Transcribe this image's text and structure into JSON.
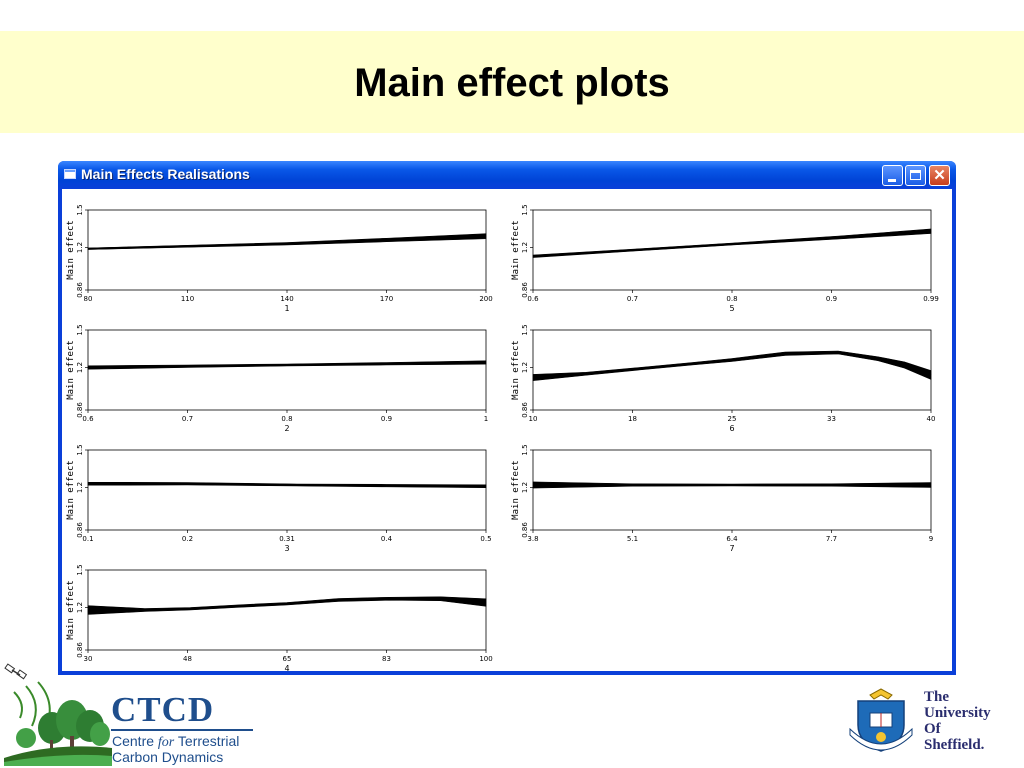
{
  "slide": {
    "title": "Main effect plots",
    "title_band_color": "#ffffcc"
  },
  "window": {
    "title": "Main Effects Realisations",
    "minimize_icon": "minimize-icon",
    "maximize_icon": "maximize-icon",
    "close_icon": "close-icon"
  },
  "chart_data": [
    {
      "type": "line",
      "index_label": "1",
      "ylabel": "Main effect",
      "yticks": [
        "0.86",
        "1.2",
        "1.5"
      ],
      "ylim": [
        0.86,
        1.5
      ],
      "xticks": [
        "80",
        "110",
        "140",
        "170",
        "200"
      ],
      "xlim": [
        80,
        200
      ],
      "x": [
        80,
        110,
        140,
        170,
        200
      ],
      "y": [
        1.19,
        1.21,
        1.23,
        1.26,
        1.29
      ],
      "band": [
        0.006,
        0.008,
        0.01,
        0.014,
        0.02
      ]
    },
    {
      "type": "line",
      "index_label": "5",
      "ylabel": "Main effect",
      "yticks": [
        "0.86",
        "1.2",
        "1.5"
      ],
      "ylim": [
        0.86,
        1.5
      ],
      "xticks": [
        "0.6",
        "0.7",
        "0.8",
        "0.9",
        "0.99"
      ],
      "xlim": [
        0.6,
        0.99
      ],
      "x": [
        0.6,
        0.7,
        0.8,
        0.9,
        0.99
      ],
      "y": [
        1.13,
        1.18,
        1.23,
        1.28,
        1.33
      ],
      "band": [
        0.01,
        0.008,
        0.008,
        0.012,
        0.018
      ]
    },
    {
      "type": "line",
      "index_label": "2",
      "ylabel": "Main effect",
      "yticks": [
        "0.86",
        "1.2",
        "1.5"
      ],
      "ylim": [
        0.86,
        1.5
      ],
      "xticks": [
        "0.6",
        "0.7",
        "0.8",
        "0.9",
        "1"
      ],
      "xlim": [
        0.6,
        1.0
      ],
      "x": [
        0.6,
        0.7,
        0.8,
        0.9,
        1.0
      ],
      "y": [
        1.2,
        1.21,
        1.22,
        1.23,
        1.24
      ],
      "band": [
        0.014,
        0.01,
        0.008,
        0.01,
        0.014
      ]
    },
    {
      "type": "line",
      "index_label": "6",
      "ylabel": "Main effect",
      "yticks": [
        "0.86",
        "1.2",
        "1.5"
      ],
      "ylim": [
        0.86,
        1.5
      ],
      "xticks": [
        "10",
        "18",
        "25",
        "33",
        "40"
      ],
      "xlim": [
        10,
        40
      ],
      "x": [
        10,
        14,
        18,
        22,
        25,
        29,
        33,
        36,
        38,
        40
      ],
      "y": [
        1.12,
        1.15,
        1.19,
        1.23,
        1.26,
        1.31,
        1.32,
        1.27,
        1.22,
        1.14
      ],
      "band": [
        0.025,
        0.012,
        0.01,
        0.01,
        0.012,
        0.014,
        0.012,
        0.016,
        0.025,
        0.035
      ]
    },
    {
      "type": "line",
      "index_label": "3",
      "ylabel": "Main effect",
      "yticks": [
        "0.86",
        "1.2",
        "1.5"
      ],
      "ylim": [
        0.86,
        1.5
      ],
      "xticks": [
        "0.1",
        "0.2",
        "0.31",
        "0.4",
        "0.5"
      ],
      "xlim": [
        0.1,
        0.5
      ],
      "x": [
        0.1,
        0.2,
        0.31,
        0.4,
        0.5
      ],
      "y": [
        1.23,
        1.23,
        1.22,
        1.215,
        1.21
      ],
      "band": [
        0.012,
        0.01,
        0.008,
        0.01,
        0.012
      ]
    },
    {
      "type": "line",
      "index_label": "7",
      "ylabel": "Main effect",
      "yticks": [
        "0.86",
        "1.2",
        "1.5"
      ],
      "ylim": [
        0.86,
        1.5
      ],
      "xticks": [
        "3.8",
        "5.1",
        "6.4",
        "7.7",
        "9"
      ],
      "xlim": [
        3.8,
        9
      ],
      "x": [
        3.8,
        5.1,
        6.4,
        7.7,
        9
      ],
      "y": [
        1.22,
        1.22,
        1.22,
        1.22,
        1.22
      ],
      "band": [
        0.025,
        0.01,
        0.008,
        0.01,
        0.02
      ]
    },
    {
      "type": "line",
      "index_label": "4",
      "ylabel": "Main effect",
      "yticks": [
        "0.86",
        "1.2",
        "1.5"
      ],
      "ylim": [
        0.86,
        1.5
      ],
      "xticks": [
        "30",
        "48",
        "65",
        "83",
        "100"
      ],
      "xlim": [
        30,
        100
      ],
      "x": [
        30,
        40,
        48,
        56,
        65,
        74,
        83,
        92,
        100
      ],
      "y": [
        1.18,
        1.18,
        1.19,
        1.21,
        1.23,
        1.26,
        1.27,
        1.27,
        1.24
      ],
      "band": [
        0.035,
        0.012,
        0.01,
        0.01,
        0.01,
        0.012,
        0.012,
        0.016,
        0.03
      ]
    }
  ],
  "logos": {
    "ctcd": {
      "name": "CTCD",
      "line1_a": "Centre ",
      "line1_b": "for",
      "line1_c": " Terrestrial",
      "line2": "Carbon Dynamics"
    },
    "sheffield": {
      "line1": "The",
      "line2": "University",
      "line3": "Of",
      "line4": "Sheffield."
    }
  }
}
